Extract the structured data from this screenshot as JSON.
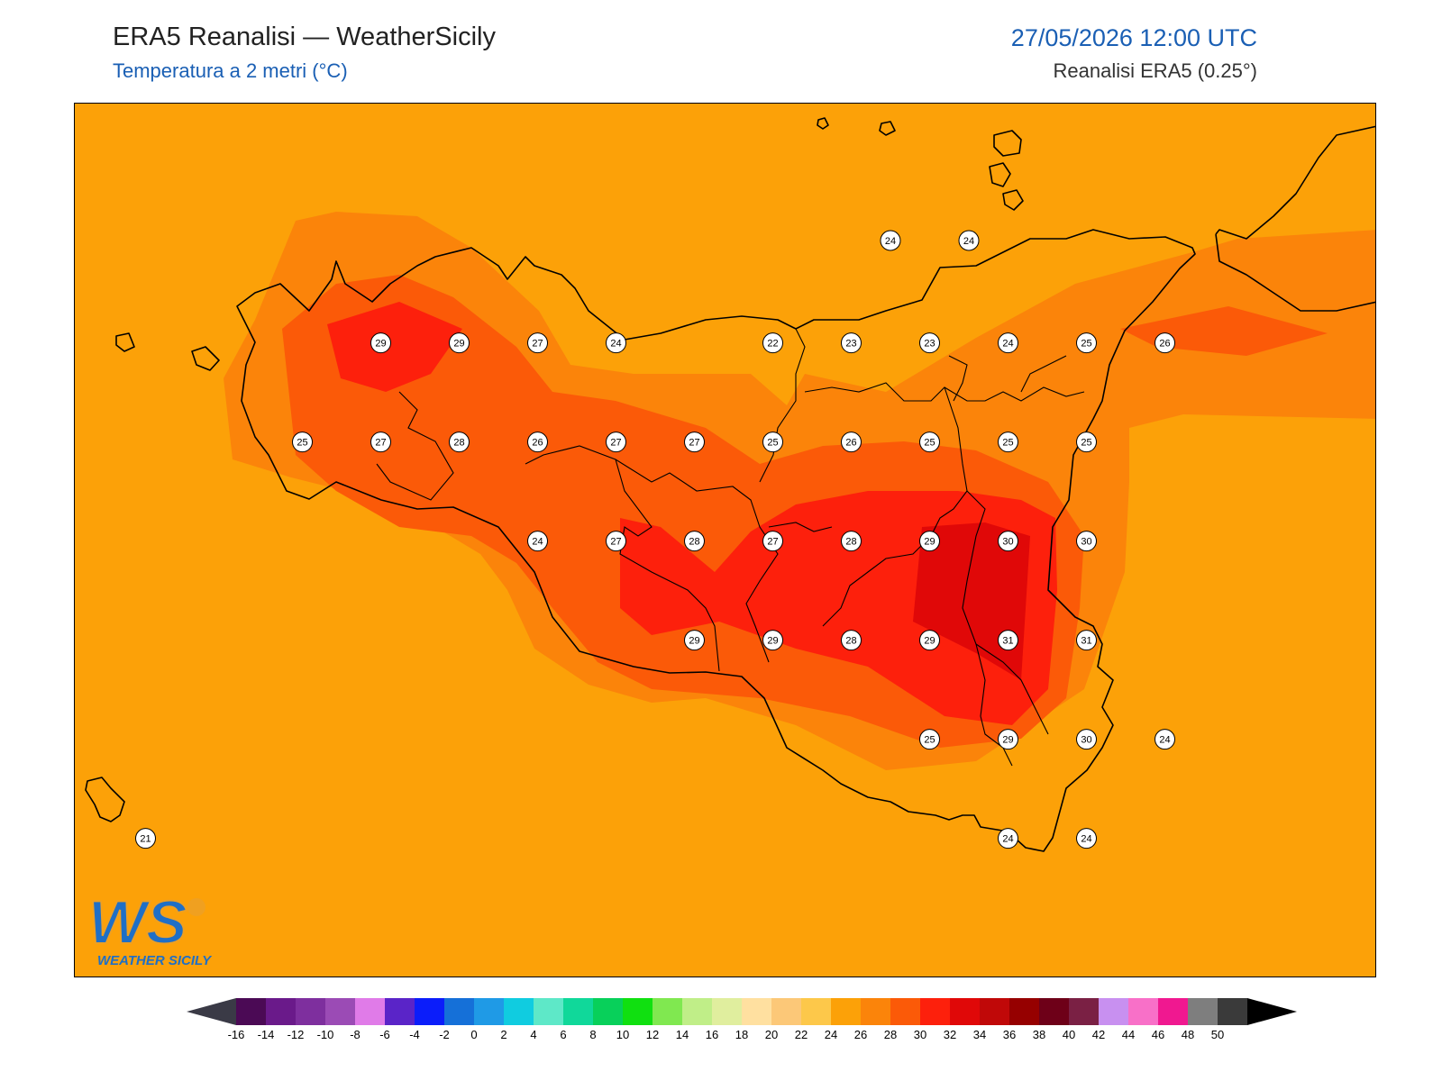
{
  "header": {
    "title": "ERA5 Reanalisi — WeatherSicily",
    "subtitle": "Temperatura a 2 metri (°C)",
    "datetime": "27/05/2026 12:00 UTC",
    "source": "Reanalisi ERA5 (0.25°)"
  },
  "colors": {
    "t20": "#fdc84a",
    "t22": "#fcc03e",
    "t24": "#fca108",
    "t26": "#fb840a",
    "t28": "#fb5a08",
    "t30": "#fd200c",
    "t32": "#e00808",
    "logo_blue": "#1f6fc6",
    "logo_orange": "#f0a020",
    "date_blue": "#1a5fb4"
  },
  "stations": [
    {
      "t": "24",
      "lat": 38.44,
      "lon": 15.5
    },
    {
      "t": "24",
      "lat": 38.44,
      "lon": 16.0
    },
    {
      "t": "29",
      "lat": 38.13,
      "lon": 12.25
    },
    {
      "t": "29",
      "lat": 38.13,
      "lon": 12.75
    },
    {
      "t": "27",
      "lat": 38.13,
      "lon": 13.25
    },
    {
      "t": "24",
      "lat": 38.13,
      "lon": 13.75
    },
    {
      "t": "22",
      "lat": 38.13,
      "lon": 14.75
    },
    {
      "t": "23",
      "lat": 38.13,
      "lon": 15.25
    },
    {
      "t": "23",
      "lat": 38.13,
      "lon": 15.75
    },
    {
      "t": "24",
      "lat": 38.13,
      "lon": 16.25
    },
    {
      "t": "25",
      "lat": 38.13,
      "lon": 16.75
    },
    {
      "t": "26",
      "lat": 38.13,
      "lon": 17.25
    },
    {
      "t": "25",
      "lat": 37.83,
      "lon": 11.75
    },
    {
      "t": "27",
      "lat": 37.83,
      "lon": 12.25
    },
    {
      "t": "28",
      "lat": 37.83,
      "lon": 12.75
    },
    {
      "t": "26",
      "lat": 37.83,
      "lon": 13.25
    },
    {
      "t": "27",
      "lat": 37.83,
      "lon": 13.75
    },
    {
      "t": "27",
      "lat": 37.83,
      "lon": 14.25
    },
    {
      "t": "25",
      "lat": 37.83,
      "lon": 14.75
    },
    {
      "t": "26",
      "lat": 37.83,
      "lon": 15.25
    },
    {
      "t": "25",
      "lat": 37.83,
      "lon": 15.75
    },
    {
      "t": "25",
      "lat": 37.83,
      "lon": 16.25
    },
    {
      "t": "25",
      "lat": 37.83,
      "lon": 16.75
    },
    {
      "t": "24",
      "lat": 37.53,
      "lon": 13.25
    },
    {
      "t": "27",
      "lat": 37.53,
      "lon": 13.75
    },
    {
      "t": "28",
      "lat": 37.53,
      "lon": 14.25
    },
    {
      "t": "27",
      "lat": 37.53,
      "lon": 14.75
    },
    {
      "t": "28",
      "lat": 37.53,
      "lon": 15.25
    },
    {
      "t": "29",
      "lat": 37.53,
      "lon": 15.75
    },
    {
      "t": "30",
      "lat": 37.53,
      "lon": 16.25
    },
    {
      "t": "30",
      "lat": 37.53,
      "lon": 16.75
    },
    {
      "t": "29",
      "lat": 37.23,
      "lon": 14.25
    },
    {
      "t": "29",
      "lat": 37.23,
      "lon": 14.75
    },
    {
      "t": "28",
      "lat": 37.23,
      "lon": 15.25
    },
    {
      "t": "29",
      "lat": 37.23,
      "lon": 15.75
    },
    {
      "t": "31",
      "lat": 37.23,
      "lon": 16.25
    },
    {
      "t": "31",
      "lat": 37.23,
      "lon": 16.75
    },
    {
      "t": "25",
      "lat": 36.93,
      "lon": 15.75
    },
    {
      "t": "29",
      "lat": 36.93,
      "lon": 16.25
    },
    {
      "t": "30",
      "lat": 36.93,
      "lon": 16.75
    },
    {
      "t": "24",
      "lat": 36.93,
      "lon": 17.25
    },
    {
      "t": "21",
      "lat": 36.63,
      "lon": 10.75
    },
    {
      "t": "24",
      "lat": 36.63,
      "lon": 16.25
    },
    {
      "t": "24",
      "lat": 36.63,
      "lon": 16.75
    }
  ],
  "colorbar": {
    "ticks": [
      "-16",
      "-14",
      "-12",
      "-10",
      "-8",
      "-6",
      "-4",
      "-2",
      "0",
      "2",
      "4",
      "6",
      "8",
      "10",
      "12",
      "14",
      "16",
      "18",
      "20",
      "22",
      "24",
      "26",
      "28",
      "30",
      "32",
      "34",
      "36",
      "38",
      "40",
      "42",
      "44",
      "46",
      "48",
      "50"
    ],
    "colors": [
      "#4b0a55",
      "#6a1a8a",
      "#7e2f9e",
      "#9b4bb5",
      "#e07be8",
      "#5a24c8",
      "#0b1dfa",
      "#1570d8",
      "#1f9ae6",
      "#10cce0",
      "#5ee8c8",
      "#10d89a",
      "#08d05a",
      "#10e010",
      "#80e850",
      "#c0ee88",
      "#e0ee9e",
      "#ffe0a0",
      "#fcc878",
      "#fdc84a",
      "#fca108",
      "#fb840a",
      "#fb5a08",
      "#fd200c",
      "#e00808",
      "#c00808",
      "#960000",
      "#6e0018",
      "#7a2044",
      "#c890f0",
      "#f870c8",
      "#f01890",
      "#7e7e7e",
      "#3a3a3a"
    ]
  },
  "logo": {
    "letters": "WS",
    "caption": "WEATHER SICILY"
  }
}
